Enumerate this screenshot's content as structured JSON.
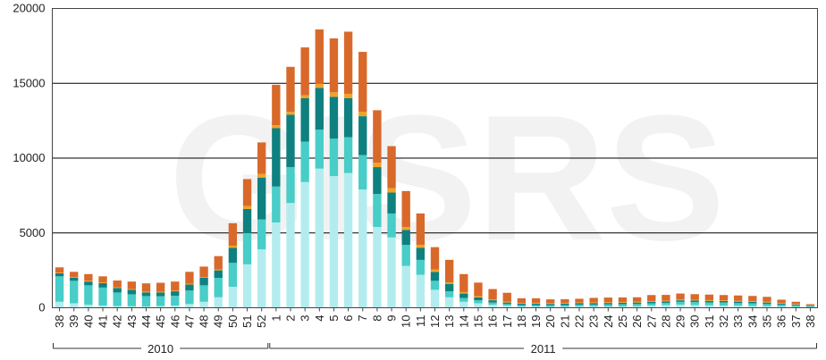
{
  "watermark": "GISRS",
  "chart_data": {
    "type": "bar",
    "stacked": true,
    "ylim": [
      0,
      20000
    ],
    "yticks": [
      "0",
      "5000",
      "10000",
      "15000",
      "20000"
    ],
    "grid": true,
    "categories": [
      "38",
      "39",
      "40",
      "41",
      "42",
      "43",
      "44",
      "45",
      "46",
      "47",
      "48",
      "49",
      "50",
      "51",
      "52",
      "1",
      "2",
      "3",
      "4",
      "5",
      "6",
      "7",
      "8",
      "9",
      "10",
      "11",
      "12",
      "13",
      "14",
      "15",
      "16",
      "17",
      "18",
      "19",
      "20",
      "21",
      "22",
      "23",
      "24",
      "25",
      "26",
      "27",
      "28",
      "29",
      "30",
      "31",
      "32",
      "33",
      "34",
      "35",
      "36",
      "37",
      "38"
    ],
    "year_groups": [
      {
        "label": "2010",
        "start": 0,
        "end": 14
      },
      {
        "label": "2011",
        "start": 15,
        "end": 52
      }
    ],
    "colors": [
      "#b3ecee",
      "#48cdc8",
      "#0e8080",
      "#efa32a",
      "#d9692a"
    ],
    "series": [
      {
        "values": [
          400,
          300,
          200,
          150,
          120,
          100,
          80,
          120,
          150,
          250,
          400,
          700,
          1400,
          2900,
          3900,
          5700,
          7000,
          8400,
          9300,
          8800,
          9000,
          7900,
          5400,
          4700,
          2800,
          2200,
          1200,
          700,
          400,
          300,
          200,
          150,
          80,
          80,
          60,
          70,
          80,
          90,
          80,
          90,
          100,
          150,
          180,
          200,
          180,
          160,
          150,
          130,
          120,
          100,
          80,
          60,
          40
        ]
      },
      {
        "values": [
          1700,
          1500,
          1300,
          1200,
          900,
          800,
          700,
          650,
          650,
          900,
          1100,
          1300,
          1600,
          2100,
          2000,
          2400,
          2400,
          2700,
          2600,
          2500,
          2400,
          2300,
          2200,
          1600,
          1400,
          1000,
          600,
          400,
          250,
          200,
          150,
          100,
          100,
          100,
          100,
          100,
          120,
          120,
          140,
          150,
          150,
          150,
          150,
          200,
          200,
          200,
          200,
          180,
          180,
          150,
          120,
          100,
          60
        ]
      },
      {
        "values": [
          200,
          200,
          250,
          300,
          300,
          300,
          250,
          250,
          300,
          400,
          500,
          500,
          1000,
          1600,
          2800,
          3900,
          3500,
          2900,
          2800,
          2800,
          2600,
          2600,
          1800,
          1400,
          1000,
          800,
          600,
          500,
          300,
          200,
          150,
          100,
          100,
          100,
          100,
          100,
          100,
          100,
          100,
          100,
          100,
          100,
          100,
          100,
          100,
          100,
          100,
          100,
          100,
          100,
          80,
          60,
          40
        ]
      },
      {
        "values": [
          50,
          50,
          50,
          50,
          50,
          50,
          50,
          50,
          50,
          50,
          50,
          50,
          150,
          200,
          250,
          200,
          200,
          200,
          250,
          300,
          300,
          300,
          300,
          300,
          200,
          200,
          150,
          100,
          100,
          80,
          50,
          50,
          50,
          50,
          50,
          50,
          50,
          50,
          50,
          50,
          50,
          50,
          50,
          50,
          50,
          50,
          50,
          50,
          50,
          50,
          40,
          30,
          20
        ]
      },
      {
        "values": [
          350,
          350,
          450,
          400,
          450,
          500,
          550,
          600,
          600,
          800,
          700,
          900,
          1500,
          1800,
          2100,
          2700,
          3000,
          3200,
          3650,
          3600,
          4150,
          4000,
          3500,
          2800,
          2400,
          2100,
          1500,
          1500,
          1200,
          900,
          700,
          600,
          300,
          300,
          250,
          250,
          250,
          300,
          310,
          300,
          300,
          400,
          380,
          400,
          380,
          370,
          350,
          360,
          340,
          330,
          220,
          150,
          80
        ]
      }
    ]
  }
}
